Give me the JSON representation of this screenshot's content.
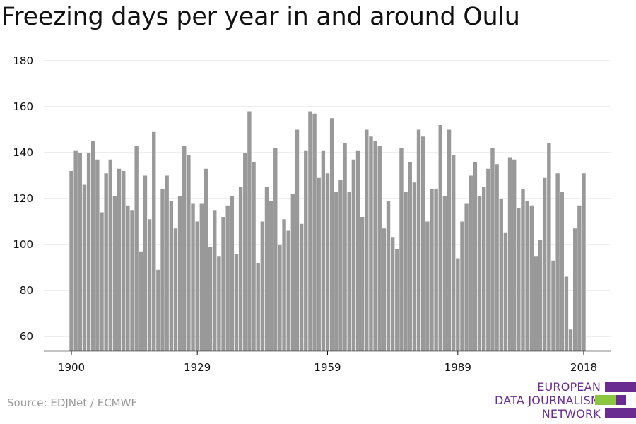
{
  "chart_data": {
    "type": "bar",
    "title": "Freezing days per year in and around Oulu",
    "xlabel": "",
    "ylabel": "",
    "ylim": [
      53,
      180
    ],
    "yticks": [
      60,
      80,
      100,
      120,
      140,
      160,
      180
    ],
    "xticks": [
      1900,
      1929,
      1959,
      1989,
      2018
    ],
    "bar_color": "#999999",
    "grid": true,
    "x": [
      1900,
      1901,
      1902,
      1903,
      1904,
      1905,
      1906,
      1907,
      1908,
      1909,
      1910,
      1911,
      1912,
      1913,
      1914,
      1915,
      1916,
      1917,
      1918,
      1919,
      1920,
      1921,
      1922,
      1923,
      1924,
      1925,
      1926,
      1927,
      1928,
      1929,
      1930,
      1931,
      1932,
      1933,
      1934,
      1935,
      1936,
      1937,
      1938,
      1939,
      1940,
      1941,
      1942,
      1943,
      1944,
      1945,
      1946,
      1947,
      1948,
      1949,
      1950,
      1951,
      1952,
      1953,
      1954,
      1955,
      1956,
      1957,
      1958,
      1959,
      1960,
      1961,
      1962,
      1963,
      1964,
      1965,
      1966,
      1967,
      1968,
      1969,
      1970,
      1971,
      1972,
      1973,
      1974,
      1975,
      1976,
      1977,
      1978,
      1979,
      1980,
      1981,
      1982,
      1983,
      1984,
      1985,
      1986,
      1987,
      1988,
      1989,
      1990,
      1991,
      1992,
      1993,
      1994,
      1995,
      1996,
      1997,
      1998,
      1999,
      2000,
      2001,
      2002,
      2003,
      2004,
      2005,
      2006,
      2007,
      2008,
      2009,
      2010,
      2011,
      2012,
      2013,
      2014,
      2015,
      2016,
      2017,
      2018
    ],
    "values": [
      132,
      141,
      140,
      126,
      140,
      145,
      137,
      114,
      131,
      137,
      121,
      133,
      132,
      117,
      115,
      143,
      97,
      130,
      111,
      149,
      89,
      124,
      130,
      119,
      107,
      121,
      143,
      139,
      118,
      110,
      118,
      133,
      99,
      115,
      95,
      112,
      117,
      121,
      96,
      125,
      140,
      158,
      136,
      92,
      110,
      125,
      119,
      142,
      100,
      111,
      106,
      122,
      150,
      109,
      141,
      158,
      157,
      129,
      141,
      131,
      155,
      123,
      128,
      144,
      123,
      137,
      141,
      112,
      150,
      147,
      145,
      143,
      107,
      119,
      103,
      98,
      142,
      123,
      136,
      127,
      150,
      147,
      110,
      124,
      124,
      152,
      121,
      150,
      139,
      94,
      110,
      118,
      130,
      136,
      121,
      125,
      133,
      142,
      135,
      120,
      105,
      138,
      137,
      116,
      124,
      119,
      117,
      95,
      102,
      129,
      144,
      93,
      131,
      123,
      86,
      63,
      107,
      117,
      131
    ]
  },
  "source": "Source: EDJNet / ECMWF",
  "logo": {
    "line1": "EUROPEAN",
    "line2": "DATA JOURNALISM",
    "line3": "NETWORK",
    "purple": "#6a2c91",
    "green": "#8cc63f"
  }
}
